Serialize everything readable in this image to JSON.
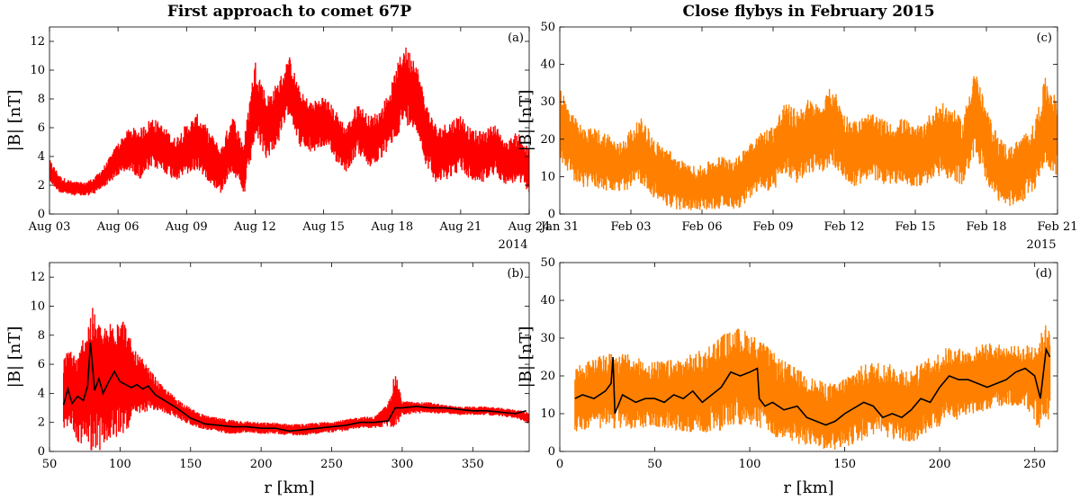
{
  "chart_data": [
    {
      "id": "a",
      "type": "line",
      "title": "First approach to comet 67P",
      "panel_label": "(a)",
      "ylabel": "|B| [nT]",
      "xlabel": "",
      "x_tick_labels": [
        "Aug 03",
        "Aug 06",
        "Aug 09",
        "Aug 12",
        "Aug 15",
        "Aug 18",
        "Aug 21",
        "Aug 24"
      ],
      "x_secondary_label": "2014",
      "xlim": [
        3,
        24
      ],
      "ylim": [
        0,
        13
      ],
      "y_ticks": [
        0,
        2,
        4,
        6,
        8,
        10,
        12
      ],
      "color": "#ff0000",
      "series": [
        {
          "name": "|B| data",
          "x": [
            3.0,
            3.5,
            4.0,
            4.5,
            5.0,
            5.5,
            6.0,
            6.5,
            7.0,
            7.5,
            8.0,
            8.5,
            9.0,
            9.5,
            10.0,
            10.5,
            11.0,
            11.5,
            12.0,
            12.5,
            13.0,
            13.5,
            14.0,
            14.5,
            15.0,
            15.5,
            16.0,
            16.5,
            17.0,
            17.5,
            18.0,
            18.5,
            19.0,
            19.5,
            20.0,
            20.5,
            21.0,
            21.5,
            22.0,
            22.5,
            23.0,
            23.5,
            24.0
          ],
          "values": [
            3.0,
            2.0,
            1.8,
            1.7,
            2.0,
            2.8,
            3.8,
            4.5,
            4.2,
            5.0,
            4.5,
            3.8,
            4.5,
            5.0,
            4.0,
            3.0,
            5.0,
            3.0,
            8.0,
            6.0,
            7.0,
            9.0,
            6.5,
            6.0,
            6.5,
            5.5,
            4.5,
            6.0,
            5.0,
            5.5,
            7.0,
            9.0,
            8.5,
            5.5,
            4.0,
            4.5,
            5.0,
            4.0,
            4.0,
            4.5,
            3.5,
            4.0,
            3.0
          ],
          "spread": [
            0.8,
            0.6,
            0.5,
            0.5,
            0.6,
            0.8,
            1.2,
            1.5,
            1.8,
            1.8,
            1.6,
            1.5,
            1.8,
            2.0,
            1.8,
            1.6,
            2.0,
            2.0,
            2.8,
            2.2,
            2.2,
            2.0,
            2.0,
            1.8,
            1.8,
            1.8,
            1.6,
            1.8,
            1.8,
            1.8,
            2.2,
            2.8,
            2.5,
            2.2,
            2.0,
            2.0,
            2.0,
            1.8,
            1.8,
            1.8,
            1.5,
            1.8,
            1.5
          ]
        }
      ]
    },
    {
      "id": "b",
      "type": "line",
      "title": "",
      "panel_label": "(b)",
      "ylabel": "|B| [nT]",
      "xlabel": "r [km]",
      "x_tick_labels": [
        "50",
        "100",
        "150",
        "200",
        "250",
        "300",
        "350"
      ],
      "xlim": [
        50,
        390
      ],
      "x_ticks": [
        50,
        100,
        150,
        200,
        250,
        300,
        350
      ],
      "ylim": [
        0,
        13
      ],
      "y_ticks": [
        0,
        2,
        4,
        6,
        8,
        10,
        12
      ],
      "color": "#ff0000",
      "series": [
        {
          "name": "|B| data",
          "x": [
            60,
            65,
            70,
            75,
            80,
            85,
            90,
            95,
            100,
            105,
            110,
            115,
            120,
            130,
            140,
            150,
            160,
            170,
            180,
            190,
            200,
            210,
            220,
            230,
            240,
            250,
            260,
            270,
            280,
            290,
            295,
            300,
            310,
            320,
            330,
            340,
            350,
            360,
            370,
            380,
            390
          ],
          "values": [
            4.0,
            4.5,
            3.5,
            4.5,
            5.0,
            4.5,
            4.5,
            5.0,
            5.5,
            5.0,
            4.5,
            4.5,
            4.3,
            3.6,
            3.0,
            2.4,
            2.0,
            1.8,
            1.7,
            1.7,
            1.6,
            1.6,
            1.5,
            1.5,
            1.6,
            1.7,
            1.8,
            2.0,
            2.0,
            2.5,
            3.5,
            3.0,
            3.0,
            3.0,
            2.9,
            2.8,
            2.8,
            2.8,
            2.7,
            2.6,
            2.3
          ],
          "spread": [
            2.5,
            2.8,
            3.0,
            4.0,
            5.0,
            4.5,
            4.0,
            4.5,
            4.5,
            3.5,
            2.5,
            2.0,
            1.5,
            0.9,
            0.7,
            0.6,
            0.5,
            0.5,
            0.5,
            0.4,
            0.4,
            0.4,
            0.4,
            0.4,
            0.4,
            0.4,
            0.4,
            0.4,
            0.4,
            0.8,
            2.0,
            0.5,
            0.4,
            0.4,
            0.3,
            0.3,
            0.3,
            0.3,
            0.3,
            0.3,
            0.4
          ]
        },
        {
          "name": "mean",
          "color": "#000000",
          "x": [
            60,
            63,
            66,
            70,
            74,
            77,
            79,
            82,
            85,
            88,
            92,
            96,
            100,
            104,
            108,
            112,
            116,
            120,
            125,
            130,
            140,
            150,
            160,
            170,
            180,
            190,
            200,
            210,
            220,
            230,
            240,
            250,
            260,
            270,
            280,
            290,
            295,
            300,
            310,
            320,
            330,
            340,
            350,
            360,
            370,
            380,
            388
          ],
          "values": [
            3.2,
            4.3,
            3.3,
            3.8,
            3.5,
            4.5,
            7.5,
            4.2,
            5.0,
            4.0,
            4.8,
            5.5,
            4.8,
            4.6,
            4.4,
            4.6,
            4.3,
            4.5,
            3.9,
            3.6,
            3.0,
            2.3,
            1.9,
            1.8,
            1.7,
            1.7,
            1.6,
            1.6,
            1.4,
            1.5,
            1.6,
            1.7,
            1.8,
            2.0,
            2.0,
            2.1,
            3.0,
            3.0,
            3.1,
            3.0,
            3.0,
            2.9,
            2.8,
            2.8,
            2.7,
            2.6,
            2.8
          ]
        }
      ]
    },
    {
      "id": "c",
      "type": "line",
      "title": "Close flybys in February 2015",
      "panel_label": "(c)",
      "ylabel": "|B| [nT]",
      "xlabel": "",
      "x_tick_labels": [
        "Jan 31",
        "Feb 03",
        "Feb 06",
        "Feb 09",
        "Feb 12",
        "Feb 15",
        "Feb 18",
        "Feb 21"
      ],
      "x_secondary_label": "2015",
      "xlim": [
        0,
        21
      ],
      "ylim": [
        0,
        50
      ],
      "y_ticks": [
        0,
        10,
        20,
        30,
        40,
        50
      ],
      "color": "#ff8000",
      "series": [
        {
          "name": "|B| data",
          "x": [
            0.0,
            0.5,
            1.0,
            1.5,
            2.0,
            2.5,
            3.0,
            3.5,
            4.0,
            4.5,
            5.0,
            5.5,
            6.0,
            6.5,
            7.0,
            7.5,
            8.0,
            8.5,
            9.0,
            9.5,
            10.0,
            10.5,
            11.0,
            11.5,
            12.0,
            12.5,
            13.0,
            13.5,
            14.0,
            14.5,
            15.0,
            15.5,
            16.0,
            16.5,
            17.0,
            17.5,
            18.0,
            18.5,
            19.0,
            19.5,
            20.0,
            20.5,
            21.0
          ],
          "values": [
            25,
            18,
            15,
            15,
            14,
            12,
            15,
            17,
            12,
            10,
            8,
            7,
            7,
            8,
            9,
            8,
            12,
            14,
            15,
            20,
            18,
            21,
            20,
            24,
            18,
            16,
            18,
            17,
            16,
            17,
            15,
            17,
            20,
            19,
            16,
            28,
            18,
            12,
            10,
            12,
            15,
            25,
            20
          ],
          "spread": [
            10,
            9,
            8,
            8,
            8,
            7,
            8,
            9,
            8,
            8,
            7,
            6,
            6,
            7,
            7,
            7,
            8,
            8,
            9,
            10,
            10,
            10,
            9,
            11,
            9,
            9,
            9,
            9,
            8,
            9,
            8,
            9,
            10,
            10,
            9,
            12,
            10,
            9,
            8,
            9,
            9,
            12,
            10
          ]
        }
      ]
    },
    {
      "id": "d",
      "type": "line",
      "title": "",
      "panel_label": "(d)",
      "ylabel": "|B| [nT]",
      "xlabel": "r [km]",
      "x_tick_labels": [
        "0",
        "50",
        "100",
        "150",
        "200",
        "250"
      ],
      "xlim": [
        0,
        262
      ],
      "x_ticks": [
        0,
        50,
        100,
        150,
        200,
        250
      ],
      "ylim": [
        0,
        50
      ],
      "y_ticks": [
        0,
        10,
        20,
        30,
        40,
        50
      ],
      "color": "#ff8000",
      "series": [
        {
          "name": "|B| data",
          "x": [
            8,
            15,
            25,
            35,
            45,
            55,
            65,
            75,
            85,
            95,
            105,
            115,
            125,
            135,
            145,
            155,
            165,
            175,
            185,
            195,
            205,
            215,
            225,
            235,
            245,
            252,
            258
          ],
          "values": [
            14,
            15,
            16,
            16,
            15,
            15,
            15,
            16,
            18,
            20,
            18,
            14,
            12,
            10,
            9,
            12,
            14,
            13,
            12,
            15,
            18,
            18,
            20,
            20,
            20,
            18,
            22
          ],
          "spread": [
            9,
            9,
            10,
            10,
            9,
            9,
            10,
            11,
            13,
            13,
            12,
            11,
            10,
            9,
            9,
            10,
            10,
            10,
            10,
            10,
            10,
            9,
            9,
            8,
            8,
            12,
            14
          ]
        },
        {
          "name": "mean",
          "color": "#000000",
          "x": [
            8,
            12,
            18,
            24,
            27,
            28,
            29,
            33,
            40,
            45,
            50,
            55,
            60,
            65,
            70,
            75,
            80,
            85,
            90,
            95,
            100,
            104,
            105,
            108,
            112,
            118,
            125,
            130,
            135,
            140,
            145,
            150,
            160,
            165,
            170,
            175,
            180,
            185,
            190,
            195,
            200,
            205,
            210,
            215,
            220,
            225,
            230,
            235,
            240,
            245,
            250,
            253,
            256,
            258
          ],
          "values": [
            14,
            15,
            14,
            16,
            18,
            25,
            10,
            15,
            13,
            14,
            14,
            13,
            15,
            14,
            16,
            13,
            15,
            17,
            21,
            20,
            21,
            22,
            14,
            12,
            13,
            11,
            12,
            9,
            8,
            7,
            8,
            10,
            13,
            12,
            9,
            10,
            9,
            11,
            14,
            13,
            17,
            20,
            19,
            19,
            18,
            17,
            18,
            19,
            21,
            22,
            20,
            14,
            27,
            25
          ]
        }
      ]
    }
  ]
}
